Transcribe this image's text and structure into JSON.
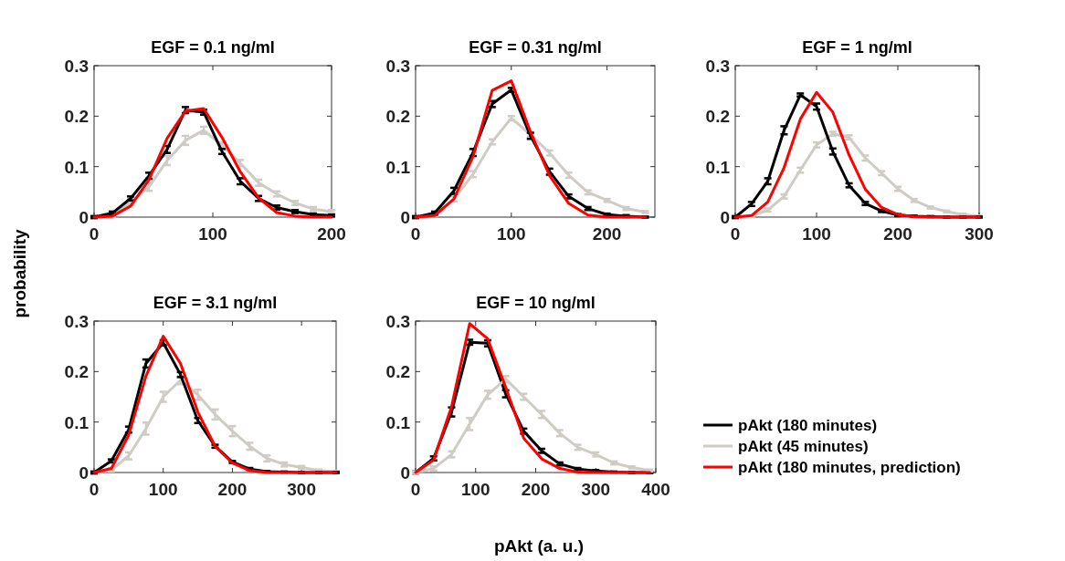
{
  "chart_data": [
    {
      "type": "line",
      "title": "EGF = 0.1 ng/ml",
      "ylabel": "probability",
      "x": [
        0,
        15.4,
        30.8,
        46.2,
        61.5,
        76.9,
        92.3,
        107.7,
        123.1,
        138.5,
        153.8,
        169.2,
        184.6,
        200
      ],
      "xlim": [
        0,
        200
      ],
      "xticks": [
        0,
        100,
        200
      ],
      "ylim": [
        0,
        0.3
      ],
      "yticks": [
        0,
        0.1,
        0.2,
        0.3
      ],
      "marker": "none",
      "line_style": "solid",
      "grid": false,
      "legend": false,
      "series": [
        {
          "color": "#cfccc6",
          "values": [
            0,
            0.003,
            0.03,
            0.06,
            0.112,
            0.152,
            0.172,
            0.142,
            0.107,
            0.068,
            0.046,
            0.028,
            0.016,
            0.011
          ],
          "errors": [
            0.002,
            0.003,
            0.006,
            0.008,
            0.009,
            0.009,
            0.007,
            0.006,
            0.006,
            0.006,
            0.005,
            0.004,
            0.004,
            0.003
          ]
        },
        {
          "color": "#000000",
          "values": [
            0,
            0.008,
            0.037,
            0.082,
            0.134,
            0.212,
            0.208,
            0.13,
            0.071,
            0.037,
            0.019,
            0.011,
            0.005,
            0.003
          ],
          "errors": [
            0.002,
            0.003,
            0.004,
            0.006,
            0.007,
            0.006,
            0.005,
            0.005,
            0.006,
            0.005,
            0.004,
            0.003,
            0.002,
            0.002
          ]
        },
        {
          "color": "#ff0000",
          "values": [
            0,
            0.002,
            0.022,
            0.074,
            0.156,
            0.21,
            0.215,
            0.158,
            0.09,
            0.038,
            0.009,
            0.002,
            0,
            0
          ]
        }
      ]
    },
    {
      "type": "line",
      "title": "EGF = 0.31 ng/ml",
      "x": [
        0,
        20,
        40,
        60,
        80,
        100,
        120,
        140,
        160,
        180,
        200,
        220,
        240
      ],
      "xlim": [
        0,
        250
      ],
      "xticks": [
        0,
        100,
        200
      ],
      "ylim": [
        0,
        0.3
      ],
      "yticks": [
        0,
        0.1,
        0.2,
        0.3
      ],
      "marker": "none",
      "line_style": "solid",
      "grid": false,
      "legend": false,
      "series": [
        {
          "color": "#cfccc6",
          "values": [
            0,
            0.005,
            0.036,
            0.085,
            0.149,
            0.196,
            0.164,
            0.127,
            0.083,
            0.049,
            0.033,
            0.017,
            0.01
          ],
          "errors": [
            0.002,
            0.003,
            0.005,
            0.006,
            0.005,
            0.004,
            0.005,
            0.005,
            0.005,
            0.004,
            0.003,
            0.003,
            0.002
          ]
        },
        {
          "color": "#000000",
          "values": [
            0,
            0.008,
            0.052,
            0.128,
            0.224,
            0.252,
            0.161,
            0.09,
            0.041,
            0.017,
            0.005,
            0.002,
            0
          ],
          "errors": [
            0.002,
            0.003,
            0.006,
            0.007,
            0.006,
            0.004,
            0.006,
            0.006,
            0.004,
            0.003,
            0.002,
            0.002,
            0.001
          ]
        },
        {
          "color": "#ff0000",
          "values": [
            0,
            0.003,
            0.036,
            0.12,
            0.251,
            0.27,
            0.169,
            0.082,
            0.027,
            0.004,
            0,
            0,
            0
          ]
        }
      ]
    },
    {
      "type": "line",
      "title": "EGF = 1 ng/ml",
      "x": [
        0,
        20,
        40,
        60,
        80,
        100,
        120,
        140,
        160,
        180,
        200,
        220,
        240,
        260,
        280,
        300
      ],
      "xlim": [
        0,
        300
      ],
      "xticks": [
        0,
        100,
        200,
        300
      ],
      "ylim": [
        0,
        0.3
      ],
      "yticks": [
        0,
        0.1,
        0.2,
        0.3
      ],
      "marker": "none",
      "line_style": "solid",
      "grid": false,
      "legend": false,
      "series": [
        {
          "color": "#cfccc6",
          "values": [
            0,
            0.002,
            0.014,
            0.041,
            0.093,
            0.143,
            0.165,
            0.158,
            0.117,
            0.087,
            0.056,
            0.033,
            0.019,
            0.011,
            0.005,
            0.002
          ],
          "errors": [
            0.001,
            0.002,
            0.003,
            0.004,
            0.005,
            0.005,
            0.004,
            0.004,
            0.005,
            0.004,
            0.004,
            0.003,
            0.002,
            0.002,
            0.002,
            0.001
          ]
        },
        {
          "color": "#000000",
          "values": [
            0,
            0.026,
            0.071,
            0.172,
            0.242,
            0.219,
            0.13,
            0.063,
            0.027,
            0.012,
            0.004,
            0.002,
            0.001,
            0,
            0,
            0
          ],
          "errors": [
            0.002,
            0.004,
            0.006,
            0.008,
            0.003,
            0.006,
            0.006,
            0.004,
            0.003,
            0.002,
            0.002,
            0.001,
            0.001,
            0.001,
            0.001,
            0.001
          ]
        },
        {
          "color": "#ff0000",
          "values": [
            0,
            0.003,
            0.03,
            0.098,
            0.194,
            0.247,
            0.208,
            0.123,
            0.055,
            0.019,
            0.005,
            0.001,
            0,
            0,
            0,
            0
          ]
        }
      ]
    },
    {
      "type": "line",
      "title": "EGF = 3.1 ng/ml",
      "x": [
        0,
        25,
        50,
        75,
        100,
        125,
        150,
        175,
        200,
        225,
        250,
        275,
        300,
        325,
        350
      ],
      "xlim": [
        0,
        350
      ],
      "xticks": [
        0,
        100,
        200,
        300
      ],
      "ylim": [
        0,
        0.3
      ],
      "yticks": [
        0,
        0.1,
        0.2,
        0.3
      ],
      "marker": "none",
      "line_style": "solid",
      "grid": false,
      "legend": false,
      "series": [
        {
          "color": "#cfccc6",
          "values": [
            0,
            0.005,
            0.033,
            0.087,
            0.15,
            0.183,
            0.154,
            0.115,
            0.082,
            0.052,
            0.028,
            0.016,
            0.01,
            0.004,
            0.002
          ],
          "errors": [
            0.002,
            0.003,
            0.007,
            0.012,
            0.01,
            0.008,
            0.01,
            0.01,
            0.01,
            0.007,
            0.006,
            0.004,
            0.003,
            0.002,
            0.001
          ]
        },
        {
          "color": "#000000",
          "values": [
            0,
            0.023,
            0.085,
            0.216,
            0.257,
            0.194,
            0.103,
            0.052,
            0.021,
            0.007,
            0.002,
            0.001,
            0,
            0,
            0
          ],
          "errors": [
            0.002,
            0.003,
            0.006,
            0.008,
            0.005,
            0.005,
            0.005,
            0.003,
            0.002,
            0.002,
            0.001,
            0.001,
            0.001,
            0.001,
            0.001
          ]
        },
        {
          "color": "#ff0000",
          "values": [
            0,
            0.008,
            0.074,
            0.191,
            0.27,
            0.216,
            0.12,
            0.052,
            0.019,
            0.004,
            0,
            0,
            0,
            0,
            0
          ]
        }
      ]
    },
    {
      "type": "line",
      "title": "EGF = 10 ng/ml",
      "xlabel": "pAkt (a. u.)",
      "x": [
        0,
        30,
        60,
        90,
        120,
        150,
        180,
        210,
        240,
        270,
        300,
        330,
        360,
        390
      ],
      "xlim": [
        0,
        400
      ],
      "xticks": [
        0,
        100,
        200,
        300,
        400
      ],
      "ylim": [
        0,
        0.3
      ],
      "yticks": [
        0,
        0.1,
        0.2,
        0.3
      ],
      "marker": "none",
      "line_style": "solid",
      "grid": false,
      "legend": "right",
      "series": [
        {
          "name": "pAkt (180 minutes)",
          "color": "#000000",
          "values": [
            0,
            0.028,
            0.12,
            0.258,
            0.256,
            0.156,
            0.082,
            0.043,
            0.017,
            0.007,
            0.003,
            0.001,
            0,
            0
          ],
          "errors": [
            0.002,
            0.004,
            0.009,
            0.005,
            0.006,
            0.007,
            0.005,
            0.004,
            0.003,
            0.002,
            0.002,
            0.001,
            0.001,
            0.001
          ]
        },
        {
          "name": "pAkt (45 minutes)",
          "color": "#cfccc6",
          "values": [
            0,
            0.008,
            0.036,
            0.096,
            0.154,
            0.185,
            0.15,
            0.115,
            0.078,
            0.05,
            0.036,
            0.019,
            0.01,
            0.004
          ],
          "errors": [
            0.002,
            0.004,
            0.006,
            0.012,
            0.008,
            0.006,
            0.006,
            0.007,
            0.006,
            0.005,
            0.004,
            0.003,
            0.002,
            0.002
          ]
        },
        {
          "name": "pAkt (180 minutes, prediction)",
          "color": "#ff0000",
          "values": [
            0,
            0.025,
            0.131,
            0.295,
            0.265,
            0.169,
            0.068,
            0.027,
            0.008,
            0.001,
            0,
            0,
            0,
            0
          ]
        }
      ]
    }
  ]
}
